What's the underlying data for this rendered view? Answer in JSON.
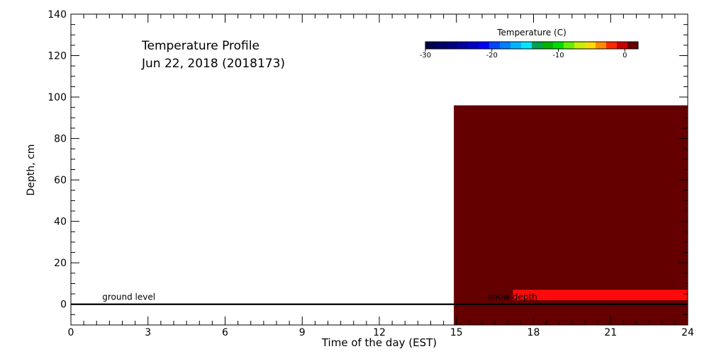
{
  "chart_data": {
    "type": "heatmap",
    "title_line1": "Temperature Profile",
    "title_line2": "Jun 22, 2018 (2018173)",
    "xlabel": "Time of the day (EST)",
    "ylabel": "Depth, cm",
    "xlim": [
      0,
      24
    ],
    "ylim": [
      -10,
      140
    ],
    "x_ticks": [
      0,
      3,
      6,
      9,
      12,
      15,
      18,
      21,
      24
    ],
    "y_ticks": [
      0,
      20,
      40,
      60,
      80,
      100,
      120,
      140
    ],
    "cells": [
      {
        "x0": 14.9,
        "x1": 24,
        "y0": -10,
        "y1": 96,
        "color": "#640000",
        "temperature_bin": "above 2"
      },
      {
        "x0": 17.2,
        "x1": 24,
        "y0": 2,
        "y1": 7,
        "color": "#ff0a0a",
        "temperature_bin": "~1"
      }
    ],
    "reference_lines": [
      {
        "name": "ground level",
        "y": 0,
        "x_label_at": 1.0
      },
      {
        "name": "snow depth",
        "y": 0,
        "x_label_at": 16.0
      }
    ],
    "colorbar": {
      "title": "Temperature (C)",
      "range": [
        -30,
        2
      ],
      "ticks": [
        -30,
        -20,
        -10,
        0
      ],
      "tick_labels": [
        "-30",
        "-20",
        "-10",
        "0"
      ],
      "colors": [
        "#000050",
        "#000064",
        "#000080",
        "#0000a0",
        "#0000c8",
        "#0000ff",
        "#0046ff",
        "#0080ff",
        "#00b4ff",
        "#00e6ff",
        "#00a050",
        "#00b400",
        "#00dc00",
        "#64f000",
        "#c8f000",
        "#ffdc00",
        "#ff8c00",
        "#ff2800",
        "#c80000",
        "#640000"
      ]
    }
  }
}
